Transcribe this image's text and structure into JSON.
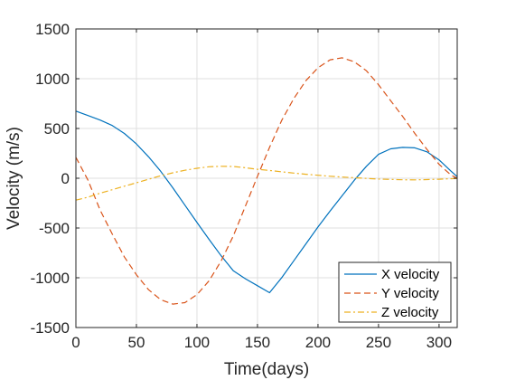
{
  "chart_data": {
    "type": "line",
    "title": "",
    "xlabel": "Time(days)",
    "ylabel": "Velocity (m/s)",
    "xlim": [
      0,
      315
    ],
    "ylim": [
      -1500,
      1500
    ],
    "x_ticks": [
      0,
      50,
      100,
      150,
      200,
      250,
      300
    ],
    "y_ticks": [
      -1500,
      -1000,
      -500,
      0,
      500,
      1000,
      1500
    ],
    "x_tick_labels": [
      "0",
      "50",
      "100",
      "150",
      "200",
      "250",
      "300"
    ],
    "y_tick_labels": [
      "-1500",
      "-1000",
      "-500",
      "0",
      "500",
      "1000",
      "1500"
    ],
    "grid": true,
    "legend_position": "bottom-right",
    "series": [
      {
        "name": "X velocity",
        "color": "#0072BD",
        "style": "solid",
        "x": [
          0,
          10,
          20,
          30,
          40,
          50,
          60,
          70,
          80,
          90,
          100,
          110,
          120,
          130,
          140,
          150,
          160,
          170,
          180,
          190,
          200,
          210,
          220,
          230,
          240,
          250,
          260,
          270,
          280,
          290,
          300,
          310,
          315
        ],
        "y": [
          675,
          630,
          585,
          530,
          450,
          345,
          215,
          70,
          -95,
          -270,
          -445,
          -615,
          -780,
          -930,
          -1010,
          -1080,
          -1150,
          -1000,
          -830,
          -660,
          -490,
          -330,
          -175,
          -20,
          120,
          240,
          295,
          310,
          305,
          265,
          185,
          70,
          15
        ]
      },
      {
        "name": "Y velocity",
        "color": "#D95319",
        "style": "dashed",
        "x": [
          0,
          10,
          20,
          30,
          40,
          50,
          60,
          70,
          80,
          90,
          100,
          110,
          120,
          130,
          140,
          150,
          160,
          170,
          180,
          190,
          200,
          210,
          220,
          230,
          240,
          250,
          260,
          270,
          280,
          290,
          300,
          310,
          315
        ],
        "y": [
          210,
          -20,
          -320,
          -560,
          -790,
          -970,
          -1120,
          -1220,
          -1265,
          -1250,
          -1170,
          -1030,
          -830,
          -580,
          -280,
          20,
          310,
          580,
          800,
          980,
          1110,
          1190,
          1210,
          1170,
          1080,
          940,
          780,
          620,
          450,
          290,
          140,
          30,
          0
        ]
      },
      {
        "name": "Z velocity",
        "color": "#EDB120",
        "style": "dashdot",
        "x": [
          0,
          10,
          20,
          30,
          40,
          50,
          60,
          70,
          80,
          90,
          100,
          110,
          120,
          130,
          140,
          150,
          160,
          170,
          180,
          190,
          200,
          210,
          220,
          230,
          240,
          250,
          260,
          270,
          280,
          290,
          300,
          310,
          315
        ],
        "y": [
          -220,
          -190,
          -150,
          -115,
          -80,
          -45,
          -10,
          25,
          55,
          80,
          100,
          115,
          120,
          118,
          105,
          90,
          78,
          65,
          52,
          40,
          30,
          20,
          12,
          5,
          -2,
          -8,
          -12,
          -15,
          -16,
          -14,
          -10,
          -5,
          -3
        ]
      }
    ]
  }
}
